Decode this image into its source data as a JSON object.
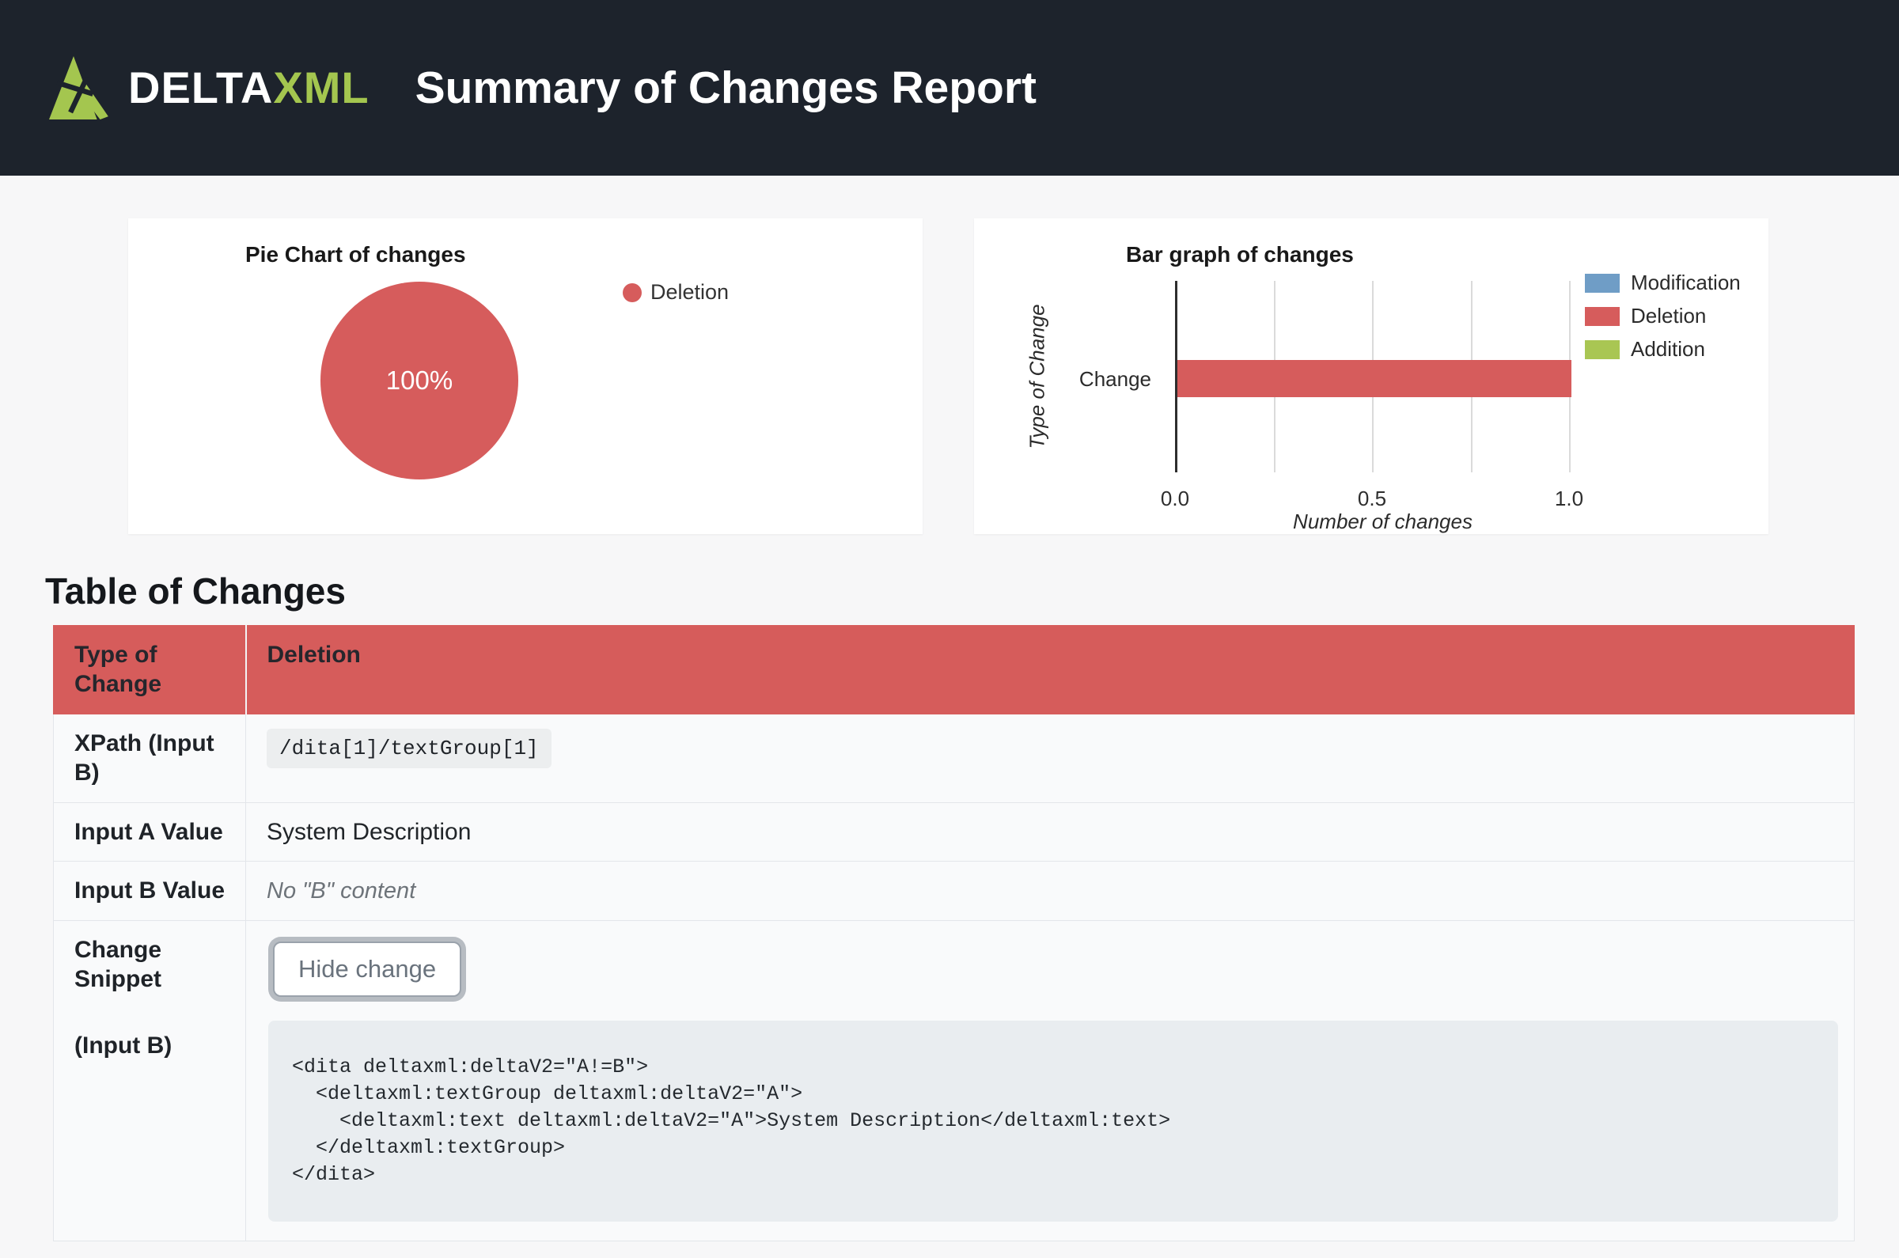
{
  "header": {
    "brand_delta": "DELTA",
    "brand_xml": "XML",
    "title": "Summary of Changes Report",
    "background_color": "#1d232c",
    "brand_green": "#a4c64f"
  },
  "chart_data": [
    {
      "type": "pie",
      "title": "Pie Chart of changes",
      "slices": [
        {
          "label": "Deletion",
          "value": 100,
          "unit": "%",
          "color": "#d65c5c"
        }
      ],
      "center_label": "100%",
      "legend_position": "right"
    },
    {
      "type": "bar",
      "orientation": "horizontal",
      "title": "Bar graph of changes",
      "categories": [
        "Change"
      ],
      "series": [
        {
          "name": "Modification",
          "values": [
            0
          ],
          "color": "#6f9dc6"
        },
        {
          "name": "Deletion",
          "values": [
            1
          ],
          "color": "#d65c5c"
        },
        {
          "name": "Addition",
          "values": [
            0
          ],
          "color": "#a9c653"
        }
      ],
      "xlabel": "Number of changes",
      "ylabel": "Type of Change",
      "xlim": [
        0.0,
        1.05
      ],
      "xticks": [
        {
          "value": 0.0,
          "label": "0.0"
        },
        {
          "value": 0.5,
          "label": "0.5"
        },
        {
          "value": 1.0,
          "label": "1.0"
        }
      ],
      "gridlines": [
        0.25,
        0.5,
        0.75,
        1.0
      ],
      "grid": true,
      "legend_position": "top-right"
    }
  ],
  "table": {
    "heading": "Table of Changes",
    "header": {
      "col1": "Type of Change",
      "col2": "Deletion"
    },
    "header_color": "#d65c5b",
    "xpath_row": {
      "label": "XPath (Input B)",
      "value": "/dita[1]/textGroup[1]"
    },
    "input_a_row": {
      "label": "Input A Value",
      "value": "System Description"
    },
    "input_b_row": {
      "label": "Input B Value",
      "value": "No \"B\" content"
    },
    "snippet_row": {
      "label_line1": "Change Snippet",
      "label_line2": "(Input B)",
      "button_label": "Hide change",
      "code": "<dita deltaxml:deltaV2=\"A!=B\">\n  <deltaxml:textGroup deltaxml:deltaV2=\"A\">\n    <deltaxml:text deltaxml:deltaV2=\"A\">System Description</deltaxml:text>\n  </deltaxml:textGroup>\n</dita>"
    }
  }
}
